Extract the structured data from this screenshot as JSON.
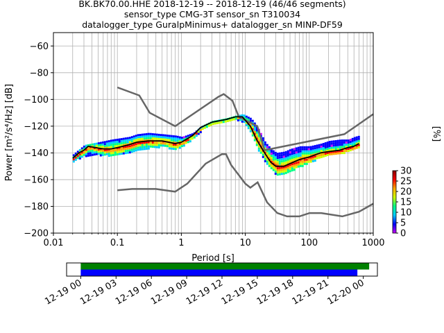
{
  "title": {
    "line1": "BK.BK70.00.HHE   2018-12-19 -- 2018-12-19  (46/46 segments)",
    "line2": "sensor_type CMG-3T sensor_sn T310034",
    "line3": "datalogger_type GuralpMinimus+ datalogger_sn MINP-DF59"
  },
  "colors": {
    "model_lines": "#666666",
    "mode_line": "#000000",
    "timeline_top": "#008000",
    "timeline_bottom": "#0000ff",
    "colormap": [
      "#cc00ff",
      "#0000ff",
      "#00ccff",
      "#00ff88",
      "#ccff00",
      "#ffaa00",
      "#ff0000",
      "#880000"
    ]
  },
  "chart_data": [
    {
      "type": "heatmap",
      "xlabel": "Period [s]",
      "ylabel": "Power [m²/s⁴/Hz] [dB]",
      "x_scale": "log",
      "xlim": [
        0.01,
        1000
      ],
      "ylim": [
        -200,
        -50
      ],
      "grid": true,
      "x_ticks": [
        {
          "value": 0.01,
          "label": "0.01"
        },
        {
          "value": 0.1,
          "label": "0.1"
        },
        {
          "value": 1,
          "label": "1"
        },
        {
          "value": 10,
          "label": "10"
        },
        {
          "value": 100,
          "label": "100"
        },
        {
          "value": 1000,
          "label": "1000"
        }
      ],
      "y_ticks": [
        -60,
        -80,
        -100,
        -120,
        -140,
        -160,
        -180,
        -200
      ],
      "colorbar": {
        "label": "[%]",
        "min": 0,
        "max": 30,
        "ticks": [
          0,
          5,
          10,
          15,
          20,
          25,
          30
        ]
      },
      "series": [
        {
          "role": "noise-model-high",
          "points": [
            [
              0.1,
              -91
            ],
            [
              0.22,
              -97
            ],
            [
              0.32,
              -110
            ],
            [
              0.8,
              -120
            ],
            [
              3.8,
              -98
            ],
            [
              4.6,
              -96
            ],
            [
              6.3,
              -101
            ],
            [
              7.9,
              -113
            ],
            [
              15.4,
              -120
            ],
            [
              20,
              -138
            ],
            [
              354,
              -126
            ],
            [
              1000,
              -111
            ]
          ]
        },
        {
          "role": "noise-model-low",
          "points": [
            [
              0.1,
              -168
            ],
            [
              0.17,
              -167
            ],
            [
              0.4,
              -167
            ],
            [
              0.8,
              -169
            ],
            [
              1.24,
              -163
            ],
            [
              2.4,
              -148
            ],
            [
              4.3,
              -141
            ],
            [
              5,
              -141
            ],
            [
              6,
              -149
            ],
            [
              10,
              -163
            ],
            [
              12,
              -166
            ],
            [
              15.6,
              -162
            ],
            [
              21.9,
              -177
            ],
            [
              31.6,
              -185
            ],
            [
              45,
              -187.5
            ],
            [
              70,
              -187.5
            ],
            [
              101,
              -185
            ],
            [
              154,
              -185
            ],
            [
              328,
              -187.5
            ],
            [
              600,
              -184
            ],
            [
              1000,
              -178
            ]
          ]
        },
        {
          "role": "mode",
          "points": [
            [
              0.02,
              -144
            ],
            [
              0.025,
              -140
            ],
            [
              0.03,
              -138
            ],
            [
              0.035,
              -135
            ],
            [
              0.045,
              -136
            ],
            [
              0.06,
              -137
            ],
            [
              0.08,
              -137
            ],
            [
              0.1,
              -136
            ],
            [
              0.15,
              -134
            ],
            [
              0.2,
              -132
            ],
            [
              0.3,
              -131
            ],
            [
              0.5,
              -131
            ],
            [
              0.8,
              -133
            ],
            [
              1,
              -132
            ],
            [
              1.5,
              -127
            ],
            [
              2,
              -121
            ],
            [
              3,
              -117
            ],
            [
              5,
              -115
            ],
            [
              7,
              -113
            ],
            [
              9,
              -113
            ],
            [
              12,
              -120
            ],
            [
              15,
              -130
            ],
            [
              20,
              -140
            ],
            [
              25,
              -147
            ],
            [
              30,
              -150
            ],
            [
              40,
              -150
            ],
            [
              50,
              -148
            ],
            [
              70,
              -145
            ],
            [
              100,
              -143
            ],
            [
              150,
              -140
            ],
            [
              200,
              -139
            ],
            [
              300,
              -138
            ],
            [
              400,
              -136
            ],
            [
              500,
              -135
            ],
            [
              600,
              -133
            ]
          ]
        },
        {
          "role": "spread-upper",
          "points": [
            [
              0.02,
              -141
            ],
            [
              0.03,
              -134
            ],
            [
              0.05,
              -132
            ],
            [
              0.08,
              -130
            ],
            [
              0.15,
              -128
            ],
            [
              0.2,
              -126
            ],
            [
              0.3,
              -125
            ],
            [
              0.5,
              -126
            ],
            [
              0.8,
              -127
            ],
            [
              1,
              -128
            ],
            [
              1.5,
              -125
            ],
            [
              2,
              -120
            ],
            [
              3,
              -116
            ],
            [
              5,
              -114
            ],
            [
              7,
              -112
            ],
            [
              9,
              -111
            ],
            [
              12,
              -114
            ],
            [
              15,
              -120
            ],
            [
              20,
              -132
            ],
            [
              25,
              -137
            ],
            [
              30,
              -140
            ],
            [
              40,
              -139
            ],
            [
              50,
              -137
            ],
            [
              70,
              -135
            ],
            [
              100,
              -135
            ],
            [
              150,
              -133
            ],
            [
              200,
              -131
            ],
            [
              300,
              -130
            ],
            [
              400,
              -130
            ],
            [
              500,
              -128
            ],
            [
              600,
              -127
            ]
          ]
        },
        {
          "role": "spread-lower",
          "points": [
            [
              0.02,
              -146
            ],
            [
              0.03,
              -142
            ],
            [
              0.05,
              -141
            ],
            [
              0.08,
              -142
            ],
            [
              0.15,
              -140
            ],
            [
              0.2,
              -138
            ],
            [
              0.3,
              -136
            ],
            [
              0.5,
              -135
            ],
            [
              0.8,
              -137
            ],
            [
              1,
              -135
            ],
            [
              1.5,
              -129
            ],
            [
              2,
              -123
            ],
            [
              3,
              -119
            ],
            [
              5,
              -117
            ],
            [
              7,
              -115
            ],
            [
              9,
              -116
            ],
            [
              12,
              -125
            ],
            [
              15,
              -136
            ],
            [
              20,
              -146
            ],
            [
              25,
              -152
            ],
            [
              30,
              -156
            ],
            [
              40,
              -155
            ],
            [
              50,
              -153
            ],
            [
              70,
              -150
            ],
            [
              100,
              -147
            ],
            [
              150,
              -143
            ],
            [
              200,
              -141
            ],
            [
              300,
              -140
            ],
            [
              400,
              -139
            ],
            [
              500,
              -137
            ],
            [
              600,
              -136
            ]
          ]
        }
      ]
    },
    {
      "type": "bar",
      "x_ticks": [
        "12-19 00",
        "12-19 03",
        "12-19 06",
        "12-19 09",
        "12-19 12",
        "12-19 15",
        "12-19 18",
        "12-19 21",
        "12-20 00"
      ],
      "xlim_hours": [
        -1.2,
        25.2
      ],
      "series": [
        {
          "role": "available-data",
          "start_hour": 0,
          "end_hour": 24.5
        },
        {
          "role": "used-segments",
          "start_hour": 0,
          "end_hour": 23.5
        }
      ]
    }
  ]
}
